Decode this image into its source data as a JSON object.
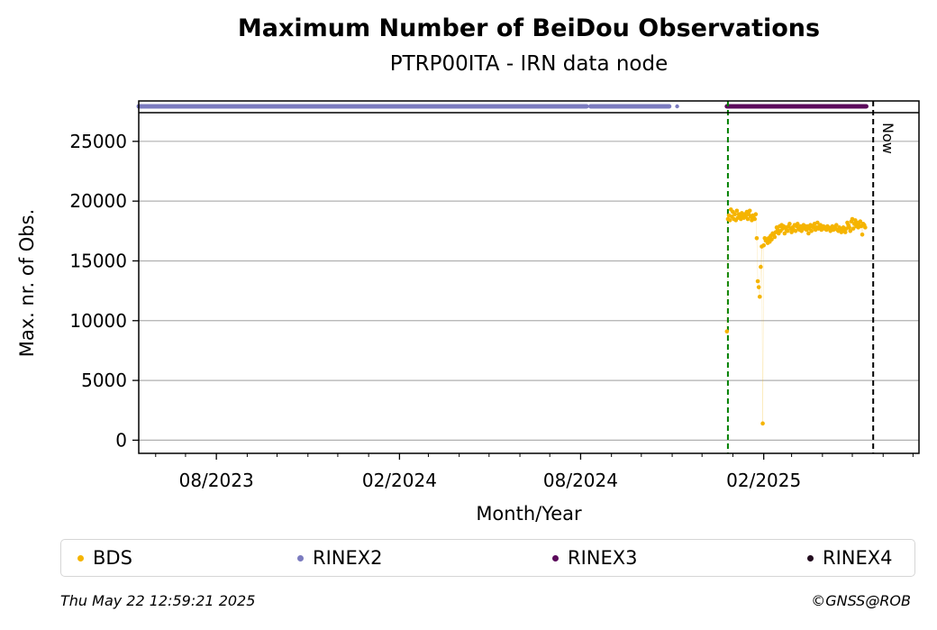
{
  "chart_data": {
    "type": "scatter",
    "title": "Maximum Number of BeiDou Observations",
    "subtitle": "PTRP00ITA - IRN data node",
    "xlabel": "Month/Year",
    "ylabel": "Max. nr. of Obs.",
    "xlim": [
      "2023-05-15",
      "2025-07-07"
    ],
    "ylim": [
      -1100,
      27400
    ],
    "yticks": [
      0,
      5000,
      10000,
      15000,
      20000,
      25000
    ],
    "xticks": [
      {
        "date": "2023-08-01",
        "label": "08/2023"
      },
      {
        "date": "2024-02-01",
        "label": "02/2024"
      },
      {
        "date": "2024-08-01",
        "label": "08/2024"
      },
      {
        "date": "2025-02-01",
        "label": "02/2025"
      }
    ],
    "minor_xtick_months": [
      "2023-06-01",
      "2023-07-01",
      "2023-09-01",
      "2023-10-01",
      "2023-11-01",
      "2023-12-01",
      "2024-01-01",
      "2024-03-01",
      "2024-04-01",
      "2024-05-01",
      "2024-06-01",
      "2024-07-01",
      "2024-09-01",
      "2024-10-01",
      "2024-11-01",
      "2024-12-01",
      "2025-01-01",
      "2025-03-01",
      "2025-04-01",
      "2025-05-01",
      "2025-06-01",
      "2025-07-01"
    ],
    "grid": "horizontal",
    "vlines": [
      {
        "date": "2024-12-27",
        "color": "#008000",
        "style": "dashed",
        "label": ""
      },
      {
        "date": "2025-05-22",
        "color": "#000000",
        "style": "dashed",
        "label": "Now"
      }
    ],
    "format_bars": [
      {
        "name": "RINEX2",
        "color": "#7b7bbf",
        "ranges": [
          [
            "2023-05-15",
            "2024-08-07"
          ],
          [
            "2024-08-11",
            "2024-10-29"
          ]
        ],
        "points": [
          "2024-11-06"
        ]
      },
      {
        "name": "RINEX3",
        "color": "#5b0a5b",
        "ranges": [
          [
            "2024-12-26",
            "2025-05-15"
          ]
        ],
        "points": []
      }
    ],
    "series": [
      {
        "name": "BDS",
        "color": "#f5b400",
        "points": [
          [
            "2024-12-26",
            9100
          ],
          [
            "2024-12-27",
            18500
          ],
          [
            "2024-12-28",
            18800
          ],
          [
            "2024-12-29",
            18400
          ],
          [
            "2024-12-30",
            19300
          ],
          [
            "2024-12-31",
            18700
          ],
          [
            "2025-01-01",
            19100
          ],
          [
            "2025-01-02",
            18500
          ],
          [
            "2025-01-03",
            18900
          ],
          [
            "2025-01-04",
            18400
          ],
          [
            "2025-01-05",
            19200
          ],
          [
            "2025-01-06",
            18600
          ],
          [
            "2025-01-07",
            18900
          ],
          [
            "2025-01-08",
            18700
          ],
          [
            "2025-01-09",
            18500
          ],
          [
            "2025-01-10",
            19000
          ],
          [
            "2025-01-11",
            18800
          ],
          [
            "2025-01-12",
            18600
          ],
          [
            "2025-01-13",
            18900
          ],
          [
            "2025-01-14",
            18700
          ],
          [
            "2025-01-15",
            19100
          ],
          [
            "2025-01-16",
            18500
          ],
          [
            "2025-01-17",
            18900
          ],
          [
            "2025-01-18",
            19200
          ],
          [
            "2025-01-19",
            18700
          ],
          [
            "2025-01-20",
            18400
          ],
          [
            "2025-01-21",
            18800
          ],
          [
            "2025-01-22",
            18600
          ],
          [
            "2025-01-23",
            18500
          ],
          [
            "2025-01-24",
            18900
          ],
          [
            "2025-01-25",
            16900
          ],
          [
            "2025-01-26",
            13300
          ],
          [
            "2025-01-27",
            12800
          ],
          [
            "2025-01-28",
            12000
          ],
          [
            "2025-01-29",
            14500
          ],
          [
            "2025-01-30",
            16200
          ],
          [
            "2025-01-31",
            1400
          ],
          [
            "2025-02-01",
            16300
          ],
          [
            "2025-02-02",
            16900
          ],
          [
            "2025-02-03",
            16700
          ],
          [
            "2025-02-04",
            16800
          ],
          [
            "2025-02-05",
            16500
          ],
          [
            "2025-02-06",
            16900
          ],
          [
            "2025-02-07",
            16600
          ],
          [
            "2025-02-08",
            17100
          ],
          [
            "2025-02-09",
            16800
          ],
          [
            "2025-02-10",
            17300
          ],
          [
            "2025-02-11",
            17200
          ],
          [
            "2025-02-12",
            17000
          ],
          [
            "2025-02-13",
            17400
          ],
          [
            "2025-02-14",
            17800
          ],
          [
            "2025-02-15",
            17600
          ],
          [
            "2025-02-16",
            17300
          ],
          [
            "2025-02-17",
            17900
          ],
          [
            "2025-02-18",
            17500
          ],
          [
            "2025-02-19",
            18000
          ],
          [
            "2025-02-20",
            17700
          ],
          [
            "2025-02-21",
            17900
          ],
          [
            "2025-02-22",
            17300
          ],
          [
            "2025-02-23",
            17800
          ],
          [
            "2025-02-24",
            17600
          ],
          [
            "2025-02-25",
            17500
          ],
          [
            "2025-02-26",
            17900
          ],
          [
            "2025-02-27",
            18100
          ],
          [
            "2025-02-28",
            17700
          ],
          [
            "2025-03-01",
            17400
          ],
          [
            "2025-03-02",
            17800
          ],
          [
            "2025-03-03",
            17600
          ],
          [
            "2025-03-04",
            18000
          ],
          [
            "2025-03-05",
            17500
          ],
          [
            "2025-03-06",
            17900
          ],
          [
            "2025-03-07",
            18100
          ],
          [
            "2025-03-08",
            17700
          ],
          [
            "2025-03-09",
            17600
          ],
          [
            "2025-03-10",
            17900
          ],
          [
            "2025-03-11",
            17500
          ],
          [
            "2025-03-12",
            17800
          ],
          [
            "2025-03-13",
            18000
          ],
          [
            "2025-03-14",
            17700
          ],
          [
            "2025-03-15",
            17900
          ],
          [
            "2025-03-16",
            17600
          ],
          [
            "2025-03-17",
            17900
          ],
          [
            "2025-03-18",
            17300
          ],
          [
            "2025-03-19",
            17700
          ],
          [
            "2025-03-20",
            18000
          ],
          [
            "2025-03-21",
            17500
          ],
          [
            "2025-03-22",
            17900
          ],
          [
            "2025-03-23",
            17800
          ],
          [
            "2025-03-24",
            18100
          ],
          [
            "2025-03-25",
            17600
          ],
          [
            "2025-03-26",
            17800
          ],
          [
            "2025-03-27",
            18200
          ],
          [
            "2025-03-28",
            17700
          ],
          [
            "2025-03-29",
            17900
          ],
          [
            "2025-03-30",
            18000
          ],
          [
            "2025-03-31",
            17600
          ],
          [
            "2025-04-01",
            17800
          ],
          [
            "2025-04-02",
            17900
          ],
          [
            "2025-04-03",
            17700
          ],
          [
            "2025-04-04",
            17800
          ],
          [
            "2025-04-05",
            17600
          ],
          [
            "2025-04-06",
            17900
          ],
          [
            "2025-04-07",
            17800
          ],
          [
            "2025-04-08",
            17700
          ],
          [
            "2025-04-09",
            17500
          ],
          [
            "2025-04-10",
            17800
          ],
          [
            "2025-04-11",
            17900
          ],
          [
            "2025-04-12",
            17600
          ],
          [
            "2025-04-13",
            17800
          ],
          [
            "2025-04-14",
            17700
          ],
          [
            "2025-04-15",
            18000
          ],
          [
            "2025-04-16",
            17600
          ],
          [
            "2025-04-17",
            17500
          ],
          [
            "2025-04-18",
            17800
          ],
          [
            "2025-04-19",
            17700
          ],
          [
            "2025-04-20",
            17400
          ],
          [
            "2025-04-21",
            17600
          ],
          [
            "2025-04-22",
            17800
          ],
          [
            "2025-04-23",
            17600
          ],
          [
            "2025-04-24",
            17400
          ],
          [
            "2025-04-25",
            17700
          ],
          [
            "2025-04-26",
            18200
          ],
          [
            "2025-04-27",
            18000
          ],
          [
            "2025-04-28",
            17800
          ],
          [
            "2025-04-29",
            17500
          ],
          [
            "2025-04-30",
            18300
          ],
          [
            "2025-05-01",
            18500
          ],
          [
            "2025-05-02",
            17700
          ],
          [
            "2025-05-03",
            18100
          ],
          [
            "2025-05-04",
            18400
          ],
          [
            "2025-05-05",
            17900
          ],
          [
            "2025-05-06",
            18200
          ],
          [
            "2025-05-07",
            17800
          ],
          [
            "2025-05-08",
            18000
          ],
          [
            "2025-05-09",
            18300
          ],
          [
            "2025-05-10",
            17900
          ],
          [
            "2025-05-11",
            17200
          ],
          [
            "2025-05-12",
            18100
          ],
          [
            "2025-05-13",
            18000
          ],
          [
            "2025-05-14",
            17800
          ]
        ]
      }
    ],
    "legend": {
      "placement": "bottom",
      "entries": [
        {
          "label": "BDS",
          "color": "#f5b400"
        },
        {
          "label": "RINEX2",
          "color": "#7b7bbf"
        },
        {
          "label": "RINEX3",
          "color": "#5b0a5b"
        },
        {
          "label": "RINEX4",
          "color": "#230d1f"
        }
      ]
    }
  },
  "footer": {
    "timestamp": "Thu May 22 12:59:21 2025",
    "credit": "©GNSS@ROB"
  }
}
